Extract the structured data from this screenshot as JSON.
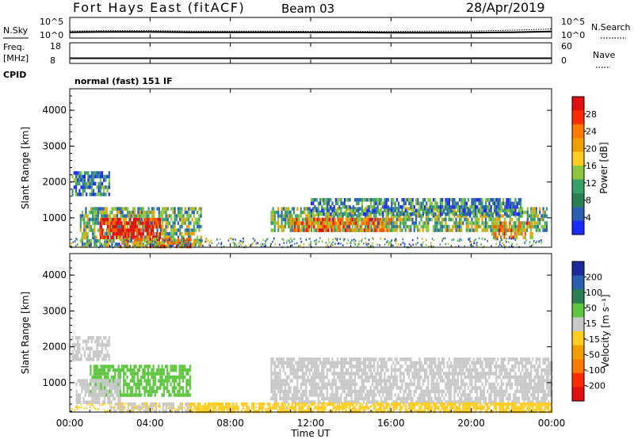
{
  "header": {
    "station": "Fort Hays East (fitACF)",
    "beam": "Beam 03",
    "date": "28/Apr/2019"
  },
  "noise_panel": {
    "left_label": "N.Sky",
    "right_label": "N.Search",
    "left_ticks": [
      "10^5",
      "10^0"
    ],
    "right_ticks": [
      "10^5",
      "10^0"
    ]
  },
  "freq_panel": {
    "left_label_1": "Freq.",
    "left_label_2": "[MHz]",
    "left_ticks": [
      "18",
      "8"
    ],
    "right_label": "Nave",
    "right_ticks": [
      "60",
      "0"
    ]
  },
  "cpid": {
    "label": "CPID",
    "value": "normal (fast) 151 IF"
  },
  "power_panel": {
    "ylabel": "Slant Range [km]",
    "yticks": [
      "4000",
      "3000",
      "2000",
      "1000"
    ],
    "colorbar_label": "Power [dB]",
    "colorbar_ticks": [
      "28",
      "24",
      "20",
      "16",
      "12",
      "8",
      "4"
    ],
    "colorbar_colors": [
      "#e01010",
      "#ff2a00",
      "#ff7a00",
      "#f0a000",
      "#ffcc22",
      "#8cc63e",
      "#3aa06a",
      "#2a8050",
      "#2a60b0",
      "#1a2aff"
    ]
  },
  "velocity_panel": {
    "ylabel": "Slant Range [km]",
    "yticks": [
      "4000",
      "3000",
      "2000",
      "1000"
    ],
    "colorbar_label": "Velocity [m s⁻¹]",
    "colorbar_ticks": [
      "200",
      "100",
      "50",
      "15",
      "-15",
      "-50",
      "-100",
      "-200"
    ],
    "colorbar_colors": [
      "#1a2a9a",
      "#2a60b0",
      "#2a8050",
      "#5cc63e",
      "#c8c8c8",
      "#ffcc22",
      "#f0a000",
      "#ff7a00",
      "#ff2a00",
      "#e01010"
    ]
  },
  "xaxis": {
    "label": "Time UT",
    "ticks": [
      "00:00",
      "04:00",
      "08:00",
      "12:00",
      "16:00",
      "20:00",
      "00:00"
    ]
  },
  "chart_data": [
    {
      "type": "line",
      "title": "N.Sky / N.Search",
      "x_range_hours": [
        0,
        24
      ],
      "series": [
        {
          "name": "N.Sky",
          "x": [
            0,
            2,
            4,
            6,
            8,
            10,
            12,
            14,
            16,
            18,
            20,
            22,
            24
          ],
          "y": [
            1.4,
            1.5,
            1.5,
            1.4,
            1.4,
            1.4,
            1.4,
            1.4,
            1.3,
            1.3,
            1.3,
            1.4,
            1.6
          ]
        },
        {
          "name": "N.Search",
          "x": [
            0,
            2,
            4,
            6,
            8,
            10,
            12,
            14,
            16,
            18,
            20,
            22,
            24
          ],
          "y": [
            1.7,
            1.8,
            1.8,
            1.7,
            1.7,
            1.7,
            1.6,
            1.6,
            1.6,
            1.7,
            1.7,
            1.9,
            2.2
          ]
        }
      ]
    },
    {
      "type": "line",
      "title": "Freq / Nave",
      "x_range_hours": [
        0,
        24
      ],
      "series": [
        {
          "name": "Freq",
          "x": [
            0,
            24
          ],
          "y": [
            10.5,
            10.5
          ]
        }
      ]
    },
    {
      "type": "heatmap",
      "title": "Power [dB]",
      "x_range_hours": [
        0,
        24
      ],
      "y_range_km": [
        180,
        4600
      ],
      "regions": [
        {
          "t0": 0.1,
          "t1": 2.0,
          "r0": 1700,
          "r1": 2300,
          "value": 10
        },
        {
          "t0": 0.5,
          "t1": 6.5,
          "r0": 250,
          "r1": 1300,
          "value": 14
        },
        {
          "t0": 1.5,
          "t1": 4.5,
          "r0": 450,
          "r1": 1000,
          "value": 28
        },
        {
          "t0": 2.5,
          "t1": 6.0,
          "r0": 250,
          "r1": 450,
          "value": 22
        },
        {
          "t0": 10.0,
          "t1": 23.8,
          "r0": 650,
          "r1": 1300,
          "value": 14
        },
        {
          "t0": 12.0,
          "t1": 22.5,
          "r0": 1100,
          "r1": 1550,
          "value": 10
        },
        {
          "t0": 11.0,
          "t1": 16.0,
          "r0": 650,
          "r1": 1000,
          "value": 22
        },
        {
          "t0": 21.0,
          "t1": 23.0,
          "r0": 500,
          "r1": 900,
          "value": 20
        }
      ]
    },
    {
      "type": "heatmap",
      "title": "Velocity [m s-1]",
      "x_range_hours": [
        0,
        24
      ],
      "y_range_km": [
        180,
        4600
      ],
      "regions": [
        {
          "t0": 0.1,
          "t1": 2.0,
          "r0": 1700,
          "r1": 2300,
          "value": 0
        },
        {
          "t0": 1.0,
          "t1": 6.0,
          "r0": 650,
          "r1": 1500,
          "value": 40
        },
        {
          "t0": 0.3,
          "t1": 2.5,
          "r0": 500,
          "r1": 1100,
          "value": 0
        },
        {
          "t0": 2.0,
          "t1": 6.0,
          "r0": 200,
          "r1": 450,
          "value": 0
        },
        {
          "t0": 10.0,
          "t1": 24.0,
          "r0": 500,
          "r1": 1700,
          "value": 0
        },
        {
          "t0": 6.0,
          "t1": 24.0,
          "r0": 200,
          "r1": 450,
          "value": -40
        }
      ]
    }
  ]
}
